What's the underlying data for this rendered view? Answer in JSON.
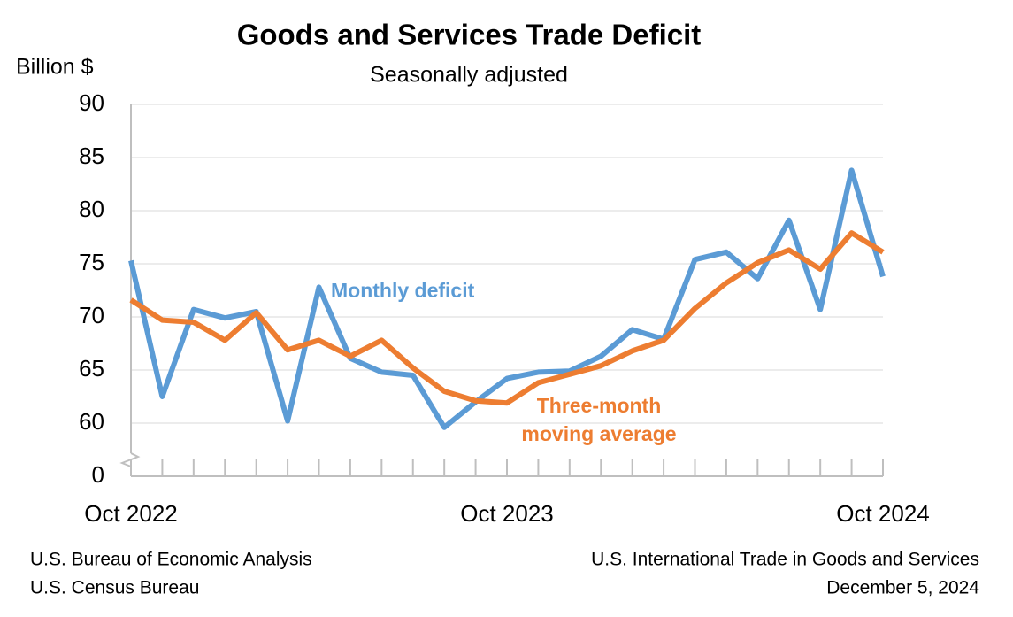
{
  "chart_data": {
    "type": "line",
    "title": "Goods and Services Trade Deficit",
    "subtitle": "Seasonally adjusted",
    "y_label": "Billion $",
    "categories": [
      "Oct 2022",
      null,
      null,
      null,
      null,
      null,
      null,
      null,
      null,
      null,
      null,
      null,
      "Oct 2023",
      null,
      null,
      null,
      null,
      null,
      null,
      null,
      null,
      null,
      null,
      null,
      "Oct 2024"
    ],
    "series": [
      {
        "name": "Monthly deficit",
        "color": "#5b9bd5",
        "values": [
          75.3,
          62.5,
          70.7,
          69.9,
          70.5,
          60.2,
          72.8,
          66.1,
          64.8,
          64.5,
          59.6,
          62.0,
          64.2,
          64.8,
          64.9,
          66.3,
          68.8,
          67.9,
          75.4,
          76.1,
          73.6,
          79.1,
          70.7,
          83.8,
          73.8
        ]
      },
      {
        "name": "Three-month moving average",
        "color": "#ed7d31",
        "values": [
          71.6,
          69.7,
          69.5,
          67.8,
          70.4,
          66.9,
          67.8,
          66.3,
          67.8,
          65.2,
          63.0,
          62.1,
          61.9,
          63.8,
          64.6,
          65.4,
          66.8,
          67.8,
          70.8,
          73.2,
          75.1,
          76.3,
          74.5,
          77.9,
          76.1
        ]
      }
    ],
    "ylim": [
      0,
      90
    ],
    "yticks": [
      0,
      60,
      65,
      70,
      75,
      80,
      85,
      90
    ],
    "y_break": true,
    "grid": true,
    "footer_left": [
      "U.S. Bureau of Economic Analysis",
      "U.S. Census Bureau"
    ],
    "footer_right": [
      "U.S. International Trade in Goods and Services",
      "December 5, 2024"
    ]
  }
}
